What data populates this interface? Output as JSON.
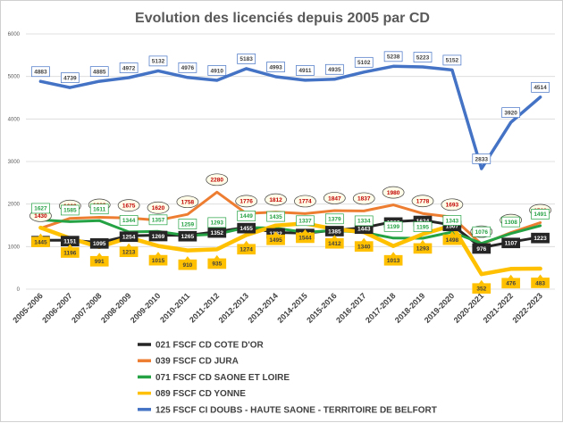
{
  "chart_data": {
    "type": "line",
    "title": "Evolution des licenciés depuis 2005 par CD",
    "xlabel": "",
    "ylabel": "",
    "ylim": [
      0,
      6000
    ],
    "yticks": [
      0,
      1000,
      2000,
      3000,
      4000,
      5000,
      6000
    ],
    "grid": true,
    "legend_position": "bottom",
    "categories": [
      "2005-2006",
      "2006-2007",
      "2007-2008",
      "2008-2009",
      "2009-2010",
      "2010-2011",
      "2011-2012",
      "2012-2013",
      "2013-2014",
      "2014-2015",
      "2015-2016",
      "2016-2017",
      "2017-2018",
      "2018-2019",
      "2019-2020",
      "2020-2021",
      "2021-2022",
      "2022-2023"
    ],
    "series": [
      {
        "name": "021 FSCF CD COTE D'OR",
        "color": "#262626",
        "label_style": "dark-box",
        "values": [
          1150,
          1151,
          1095,
          1254,
          1269,
          1265,
          1352,
          1455,
          1332,
          1318,
          1385,
          1443,
          1586,
          1624,
          1507,
          976,
          1107,
          1223
        ]
      },
      {
        "name": "039 FSCF CD JURA",
        "color": "#ed7d31",
        "label_style": "red-ellipse",
        "values": [
          1430,
          1663,
          1689,
          1675,
          1620,
          1758,
          2280,
          1776,
          1812,
          1774,
          1847,
          1837,
          1980,
          1778,
          1693,
          1058,
          1329,
          1563
        ]
      },
      {
        "name": "071 FSCF CD SAONE ET LOIRE",
        "color": "#25a244",
        "label_style": "green-box",
        "values": [
          1627,
          1585,
          1611,
          1344,
          1357,
          1259,
          1293,
          1449,
          1435,
          1337,
          1379,
          1334,
          1199,
          1195,
          1343,
          1076,
          1308,
          1491
        ]
      },
      {
        "name": "089 FSCF CD YONNE",
        "color": "#ffc000",
        "label_style": "yellow-callout",
        "values": [
          1445,
          1196,
          991,
          1213,
          1015,
          910,
          935,
          1274,
          1495,
          1544,
          1412,
          1340,
          1013,
          1293,
          1498,
          352,
          476,
          483
        ]
      },
      {
        "name": "125 FSCF CI DOUBS - HAUTE SAONE - TERRITOIRE DE BELFORT",
        "color": "#4472c4",
        "label_style": "blue-box",
        "values": [
          4883,
          4739,
          4885,
          4972,
          5132,
          4976,
          4910,
          5183,
          4993,
          4911,
          4935,
          5102,
          5238,
          5223,
          5152,
          2833,
          3920,
          4514
        ]
      }
    ]
  }
}
